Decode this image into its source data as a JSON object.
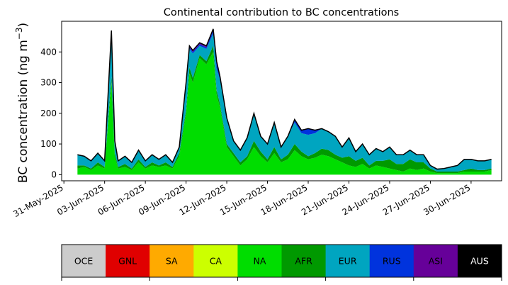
{
  "chart_data": {
    "type": "area",
    "stacked": true,
    "title": "Continental contribution to BC concentrations",
    "ylabel": "BC concentration (ng m",
    "ylabel_sup": "−3",
    "ylabel_close": ")",
    "xlabel": "",
    "ylim": [
      -20,
      500
    ],
    "xlim": [
      "2025-05-30T20:00",
      "2025-07-02T06:00"
    ],
    "yticks": [
      0,
      100,
      200,
      300,
      400
    ],
    "xticks": [
      "31-May-2025",
      "03-Jun-2025",
      "06-Jun-2025",
      "09-Jun-2025",
      "12-Jun-2025",
      "15-Jun-2025",
      "18-Jun-2025",
      "21-Jun-2025",
      "24-Jun-2025",
      "27-Jun-2025",
      "30-Jun-2025"
    ],
    "x": [
      "2025-06-01",
      "2025-06-01T12:00",
      "2025-06-02",
      "2025-06-02T12:00",
      "2025-06-03",
      "2025-06-03T12:00",
      "2025-06-03T18:00",
      "2025-06-04",
      "2025-06-04T12:00",
      "2025-06-05",
      "2025-06-05T12:00",
      "2025-06-06",
      "2025-06-06T12:00",
      "2025-06-07",
      "2025-06-07T12:00",
      "2025-06-08",
      "2025-06-08T12:00",
      "2025-06-09",
      "2025-06-09T06:00",
      "2025-06-09T12:00",
      "2025-06-10",
      "2025-06-10T12:00",
      "2025-06-11",
      "2025-06-11T06:00",
      "2025-06-11T12:00",
      "2025-06-12",
      "2025-06-12T12:00",
      "2025-06-13",
      "2025-06-13T12:00",
      "2025-06-14",
      "2025-06-14T12:00",
      "2025-06-15",
      "2025-06-15T12:00",
      "2025-06-16",
      "2025-06-16T12:00",
      "2025-06-17",
      "2025-06-17T12:00",
      "2025-06-18",
      "2025-06-18T12:00",
      "2025-06-19",
      "2025-06-19T12:00",
      "2025-06-20",
      "2025-06-20T12:00",
      "2025-06-21",
      "2025-06-21T12:00",
      "2025-06-22",
      "2025-06-22T12:00",
      "2025-06-23",
      "2025-06-23T12:00",
      "2025-06-24",
      "2025-06-24T12:00",
      "2025-06-25",
      "2025-06-25T12:00",
      "2025-06-26",
      "2025-06-26T12:00",
      "2025-06-27",
      "2025-06-27T12:00",
      "2025-06-28",
      "2025-06-28T12:00",
      "2025-06-29",
      "2025-06-29T12:00",
      "2025-06-30",
      "2025-06-30T12:00",
      "2025-07-01",
      "2025-07-01T12:00"
    ],
    "series": [
      {
        "name": "OCE",
        "color": "#cccccc",
        "values": [
          0,
          0,
          0,
          0,
          0,
          0,
          0,
          0,
          0,
          0,
          0,
          0,
          0,
          0,
          0,
          0,
          0,
          0,
          0,
          0,
          0,
          0,
          0,
          0,
          0,
          0,
          0,
          0,
          0,
          0,
          0,
          0,
          0,
          0,
          0,
          0,
          0,
          0,
          0,
          0,
          0,
          0,
          0,
          0,
          0,
          0,
          0,
          0,
          0,
          0,
          0,
          0,
          0,
          0,
          0,
          0,
          0,
          0,
          0,
          0,
          0,
          0,
          0,
          0,
          0
        ]
      },
      {
        "name": "GNL",
        "color": "#e00000",
        "values": [
          0,
          0,
          0,
          0,
          0,
          0,
          0,
          0,
          0,
          0,
          0,
          0,
          0,
          0,
          0,
          0,
          0,
          0,
          0,
          0,
          0,
          0,
          0,
          0,
          0,
          0,
          0,
          0,
          0,
          0,
          0,
          0,
          0,
          0,
          0,
          0,
          0,
          0,
          0,
          0,
          0,
          0,
          0,
          0,
          0,
          0,
          0,
          0,
          0,
          0,
          0,
          0,
          0,
          0,
          0,
          0,
          0,
          0,
          0,
          0,
          0,
          0,
          0,
          0,
          0
        ]
      },
      {
        "name": "SA",
        "color": "#ffaa00",
        "values": [
          0,
          0,
          0,
          0,
          0,
          0,
          0,
          0,
          0,
          0,
          0,
          0,
          0,
          0,
          0,
          0,
          0,
          0,
          0,
          0,
          0,
          0,
          0,
          0,
          0,
          0,
          0,
          0,
          0,
          0,
          0,
          0,
          0,
          0,
          0,
          0,
          0,
          0,
          0,
          0,
          0,
          0,
          0,
          0,
          0,
          0,
          0,
          0,
          0,
          0,
          0,
          0,
          0,
          0,
          0,
          0,
          0,
          0,
          0,
          0,
          0,
          0,
          0,
          0,
          0
        ]
      },
      {
        "name": "CA",
        "color": "#ccff00",
        "values": [
          0,
          0,
          0,
          0,
          0,
          0,
          0,
          0,
          0,
          0,
          0,
          0,
          0,
          0,
          0,
          0,
          0,
          0,
          0,
          0,
          0,
          0,
          0,
          0,
          0,
          0,
          0,
          0,
          0,
          0,
          0,
          0,
          0,
          0,
          0,
          0,
          0,
          0,
          0,
          0,
          0,
          0,
          0,
          0,
          0,
          0,
          0,
          0,
          0,
          0,
          0,
          0,
          0,
          0,
          0,
          0,
          0,
          0,
          0,
          0,
          0,
          0,
          0,
          0,
          0
        ]
      },
      {
        "name": "NA",
        "color": "#00dd00",
        "values": [
          20,
          25,
          15,
          30,
          20,
          300,
          60,
          20,
          25,
          15,
          40,
          20,
          30,
          25,
          30,
          20,
          60,
          200,
          330,
          300,
          380,
          360,
          400,
          260,
          220,
          90,
          60,
          30,
          50,
          90,
          60,
          40,
          70,
          40,
          50,
          80,
          60,
          50,
          55,
          65,
          60,
          50,
          40,
          30,
          25,
          35,
          20,
          30,
          25,
          20,
          15,
          10,
          20,
          15,
          20,
          10,
          5,
          5,
          5,
          5,
          10,
          10,
          10,
          10,
          15
        ]
      },
      {
        "name": "AFR",
        "color": "#009900",
        "values": [
          10,
          5,
          5,
          10,
          5,
          20,
          10,
          5,
          10,
          5,
          10,
          5,
          10,
          5,
          10,
          5,
          10,
          10,
          20,
          15,
          10,
          10,
          20,
          15,
          10,
          10,
          10,
          10,
          10,
          20,
          15,
          10,
          20,
          10,
          15,
          20,
          15,
          10,
          15,
          20,
          20,
          15,
          15,
          30,
          20,
          20,
          10,
          15,
          20,
          30,
          20,
          25,
          30,
          25,
          20,
          10,
          5,
          5,
          5,
          5,
          5,
          10,
          5,
          5,
          5
        ]
      },
      {
        "name": "EUR",
        "color": "#00a5c0",
        "values": [
          35,
          30,
          25,
          30,
          20,
          130,
          40,
          20,
          25,
          20,
          30,
          20,
          25,
          20,
          25,
          15,
          20,
          80,
          60,
          80,
          30,
          40,
          40,
          70,
          80,
          80,
          40,
          40,
          60,
          90,
          50,
          50,
          80,
          40,
          60,
          70,
          60,
          70,
          65,
          65,
          60,
          60,
          35,
          60,
          30,
          45,
          35,
          40,
          30,
          40,
          30,
          30,
          30,
          25,
          25,
          10,
          8,
          10,
          15,
          20,
          35,
          30,
          30,
          30,
          30
        ]
      },
      {
        "name": "RUS",
        "color": "#0033dd",
        "values": [
          0,
          0,
          0,
          0,
          0,
          10,
          0,
          0,
          0,
          0,
          0,
          0,
          0,
          0,
          0,
          0,
          0,
          5,
          5,
          5,
          5,
          5,
          10,
          20,
          5,
          5,
          0,
          0,
          0,
          0,
          0,
          0,
          0,
          0,
          0,
          10,
          10,
          20,
          10,
          0,
          0,
          0,
          0,
          0,
          0,
          0,
          0,
          0,
          0,
          0,
          0,
          0,
          0,
          0,
          0,
          0,
          0,
          0,
          0,
          0,
          0,
          0,
          0,
          0,
          0
        ]
      },
      {
        "name": "ASI",
        "color": "#660099",
        "values": [
          0,
          0,
          0,
          0,
          0,
          10,
          0,
          0,
          0,
          0,
          0,
          0,
          0,
          0,
          0,
          0,
          0,
          5,
          5,
          5,
          5,
          5,
          5,
          5,
          5,
          0,
          0,
          0,
          0,
          0,
          0,
          0,
          0,
          0,
          0,
          0,
          0,
          0,
          0,
          0,
          0,
          0,
          0,
          0,
          0,
          0,
          0,
          0,
          0,
          0,
          0,
          0,
          0,
          0,
          0,
          0,
          0,
          0,
          0,
          0,
          0,
          0,
          0,
          0,
          0
        ]
      },
      {
        "name": "AUS",
        "color": "#000000",
        "text_color": "#ffffff",
        "values": [
          0,
          0,
          0,
          0,
          0,
          0,
          0,
          0,
          0,
          0,
          0,
          0,
          0,
          0,
          0,
          0,
          0,
          0,
          0,
          0,
          0,
          0,
          0,
          0,
          0,
          0,
          0,
          0,
          0,
          0,
          0,
          0,
          0,
          0,
          0,
          0,
          0,
          0,
          0,
          0,
          0,
          0,
          0,
          0,
          0,
          0,
          0,
          0,
          0,
          0,
          0,
          0,
          0,
          0,
          0,
          0,
          0,
          0,
          0,
          0,
          0,
          0,
          0,
          0,
          0
        ]
      }
    ],
    "total_line_color": "#000000",
    "legend_placement": "bottom"
  }
}
